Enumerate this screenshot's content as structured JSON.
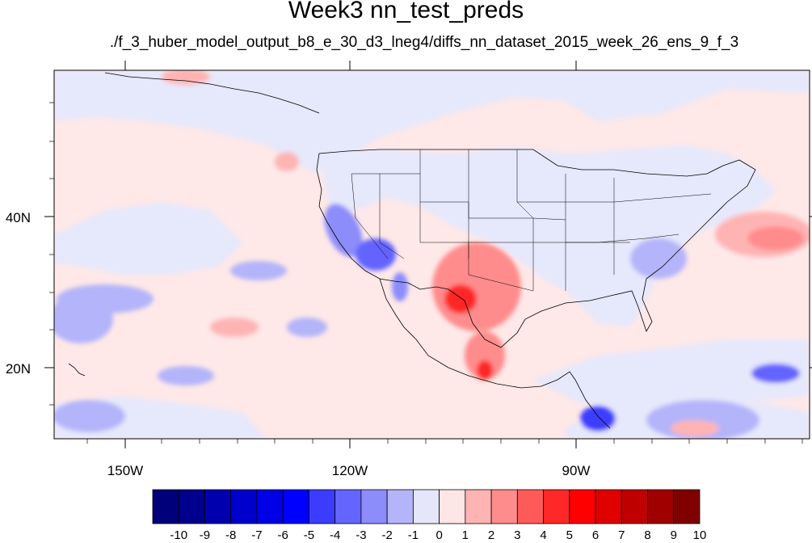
{
  "title": "Week3 nn_test_preds",
  "subtitle": "./f_3_huber_model_output_b8_e_30_d3_lneg4/diffs_nn_dataset_2015_week_26_ens_9_f_3",
  "map": {
    "lon_labels": [
      "150W",
      "120W",
      "90W"
    ],
    "lat_labels": [
      "40N",
      "20N"
    ],
    "lon_ticks": [
      150,
      120,
      90
    ],
    "lat_ticks": [
      40,
      20
    ]
  },
  "colorbar": {
    "labels": [
      "-10",
      "-9",
      "-8",
      "-7",
      "-6",
      "-5",
      "-4",
      "-3",
      "-2",
      "-1",
      "0",
      "1",
      "2",
      "3",
      "4",
      "5",
      "6",
      "7",
      "8",
      "9",
      "10"
    ],
    "colors": [
      "#00007a",
      "#00008c",
      "#0000ae",
      "#0000cc",
      "#0000e6",
      "#0000ff",
      "#3c3cff",
      "#6464ff",
      "#8c8cfa",
      "#b4b4fa",
      "#e6e6fa",
      "#ffe6e6",
      "#ffb4b4",
      "#ff8c8c",
      "#ff5a5a",
      "#ff2828",
      "#ff0000",
      "#e00000",
      "#c00000",
      "#a00000",
      "#800000"
    ]
  },
  "colors": {
    "background_warm": "#fee8e8",
    "background_cool": "#e6e8fb"
  }
}
